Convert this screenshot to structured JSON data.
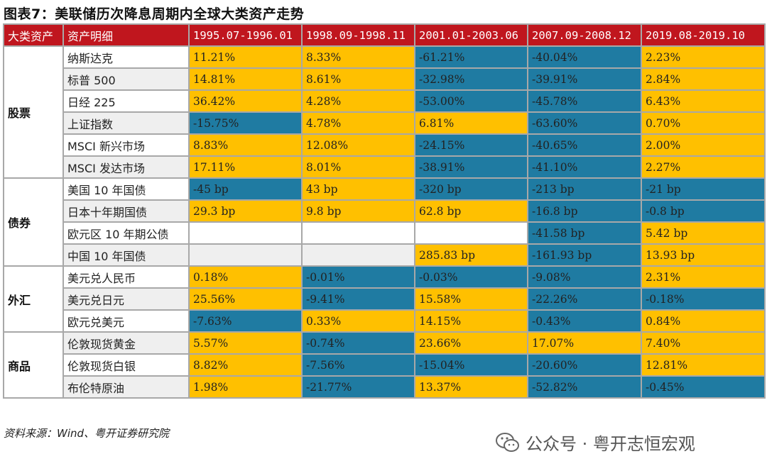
{
  "title": "图表7：美联储历次降息周期内全球大类资产走势",
  "headers": [
    "大类资产",
    "资产明细",
    "1995.07-1996.01",
    "1998.09-1998.11",
    "2001.01-2003.06",
    "2007.09-2008.12",
    "2019.08-2019.10"
  ],
  "colors": {
    "header": "#c0161e",
    "positive": "#ffc000",
    "negative": "#1f7ba2"
  },
  "groups": [
    {
      "category": "股票",
      "rows": [
        {
          "name": "纳斯达克",
          "values": [
            "11.21%",
            "8.33%",
            "-61.21%",
            "-40.04%",
            "2.23%"
          ]
        },
        {
          "name": "标普 500",
          "values": [
            "14.81%",
            "8.61%",
            "-32.98%",
            "-39.91%",
            "2.84%"
          ]
        },
        {
          "name": "日经 225",
          "values": [
            "36.42%",
            "4.28%",
            "-53.00%",
            "-45.78%",
            "6.43%"
          ]
        },
        {
          "name": "上证指数",
          "values": [
            "-15.75%",
            "4.78%",
            "6.81%",
            "-63.60%",
            "0.70%"
          ]
        },
        {
          "name": "MSCI 新兴市场",
          "values": [
            "8.83%",
            "12.08%",
            "-24.15%",
            "-40.65%",
            "2.00%"
          ]
        },
        {
          "name": "MSCI 发达市场",
          "values": [
            "17.11%",
            "8.01%",
            "-38.91%",
            "-41.10%",
            "2.27%"
          ]
        }
      ]
    },
    {
      "category": "债券",
      "rows": [
        {
          "name": "美国 10 年国债",
          "values": [
            "-45 bp",
            "43 bp",
            "-320 bp",
            "-213 bp",
            "-21 bp"
          ]
        },
        {
          "name": "日本十年期国债",
          "values": [
            "29.3 bp",
            "9.8 bp",
            "62.8 bp",
            "-16.8 bp",
            "-0.8 bp"
          ]
        },
        {
          "name": "欧元区 10 年期公债",
          "values": [
            "",
            "",
            "",
            "-41.58 bp",
            "5.42 bp"
          ]
        },
        {
          "name": "中国 10 年国债",
          "values": [
            "",
            "",
            "285.83 bp",
            "-161.93 bp",
            "13.93 bp"
          ]
        }
      ]
    },
    {
      "category": "外汇",
      "rows": [
        {
          "name": "美元兑人民币",
          "values": [
            "0.18%",
            "-0.01%",
            "-0.03%",
            "-9.08%",
            "2.31%"
          ]
        },
        {
          "name": "美元兑日元",
          "values": [
            "25.56%",
            "-9.41%",
            "15.58%",
            "-22.26%",
            "-0.18%"
          ]
        },
        {
          "name": "欧元兑美元",
          "values": [
            "-7.63%",
            "0.33%",
            "14.15%",
            "-0.43%",
            "0.84%"
          ]
        }
      ]
    },
    {
      "category": "商品",
      "rows": [
        {
          "name": "伦敦现货黄金",
          "values": [
            "5.57%",
            "-0.74%",
            "23.66%",
            "17.07%",
            "7.40%"
          ]
        },
        {
          "name": "伦敦现货白银",
          "values": [
            "8.82%",
            "-7.56%",
            "-15.04%",
            "-20.60%",
            "12.81%"
          ]
        },
        {
          "name": "布伦特原油",
          "values": [
            "1.98%",
            "-21.77%",
            "13.37%",
            "-52.82%",
            "-0.45%"
          ]
        }
      ]
    }
  ],
  "source": "资料来源：Wind、粤开证券研究院",
  "watermark": "公众号 · 粤开志恒宏观"
}
